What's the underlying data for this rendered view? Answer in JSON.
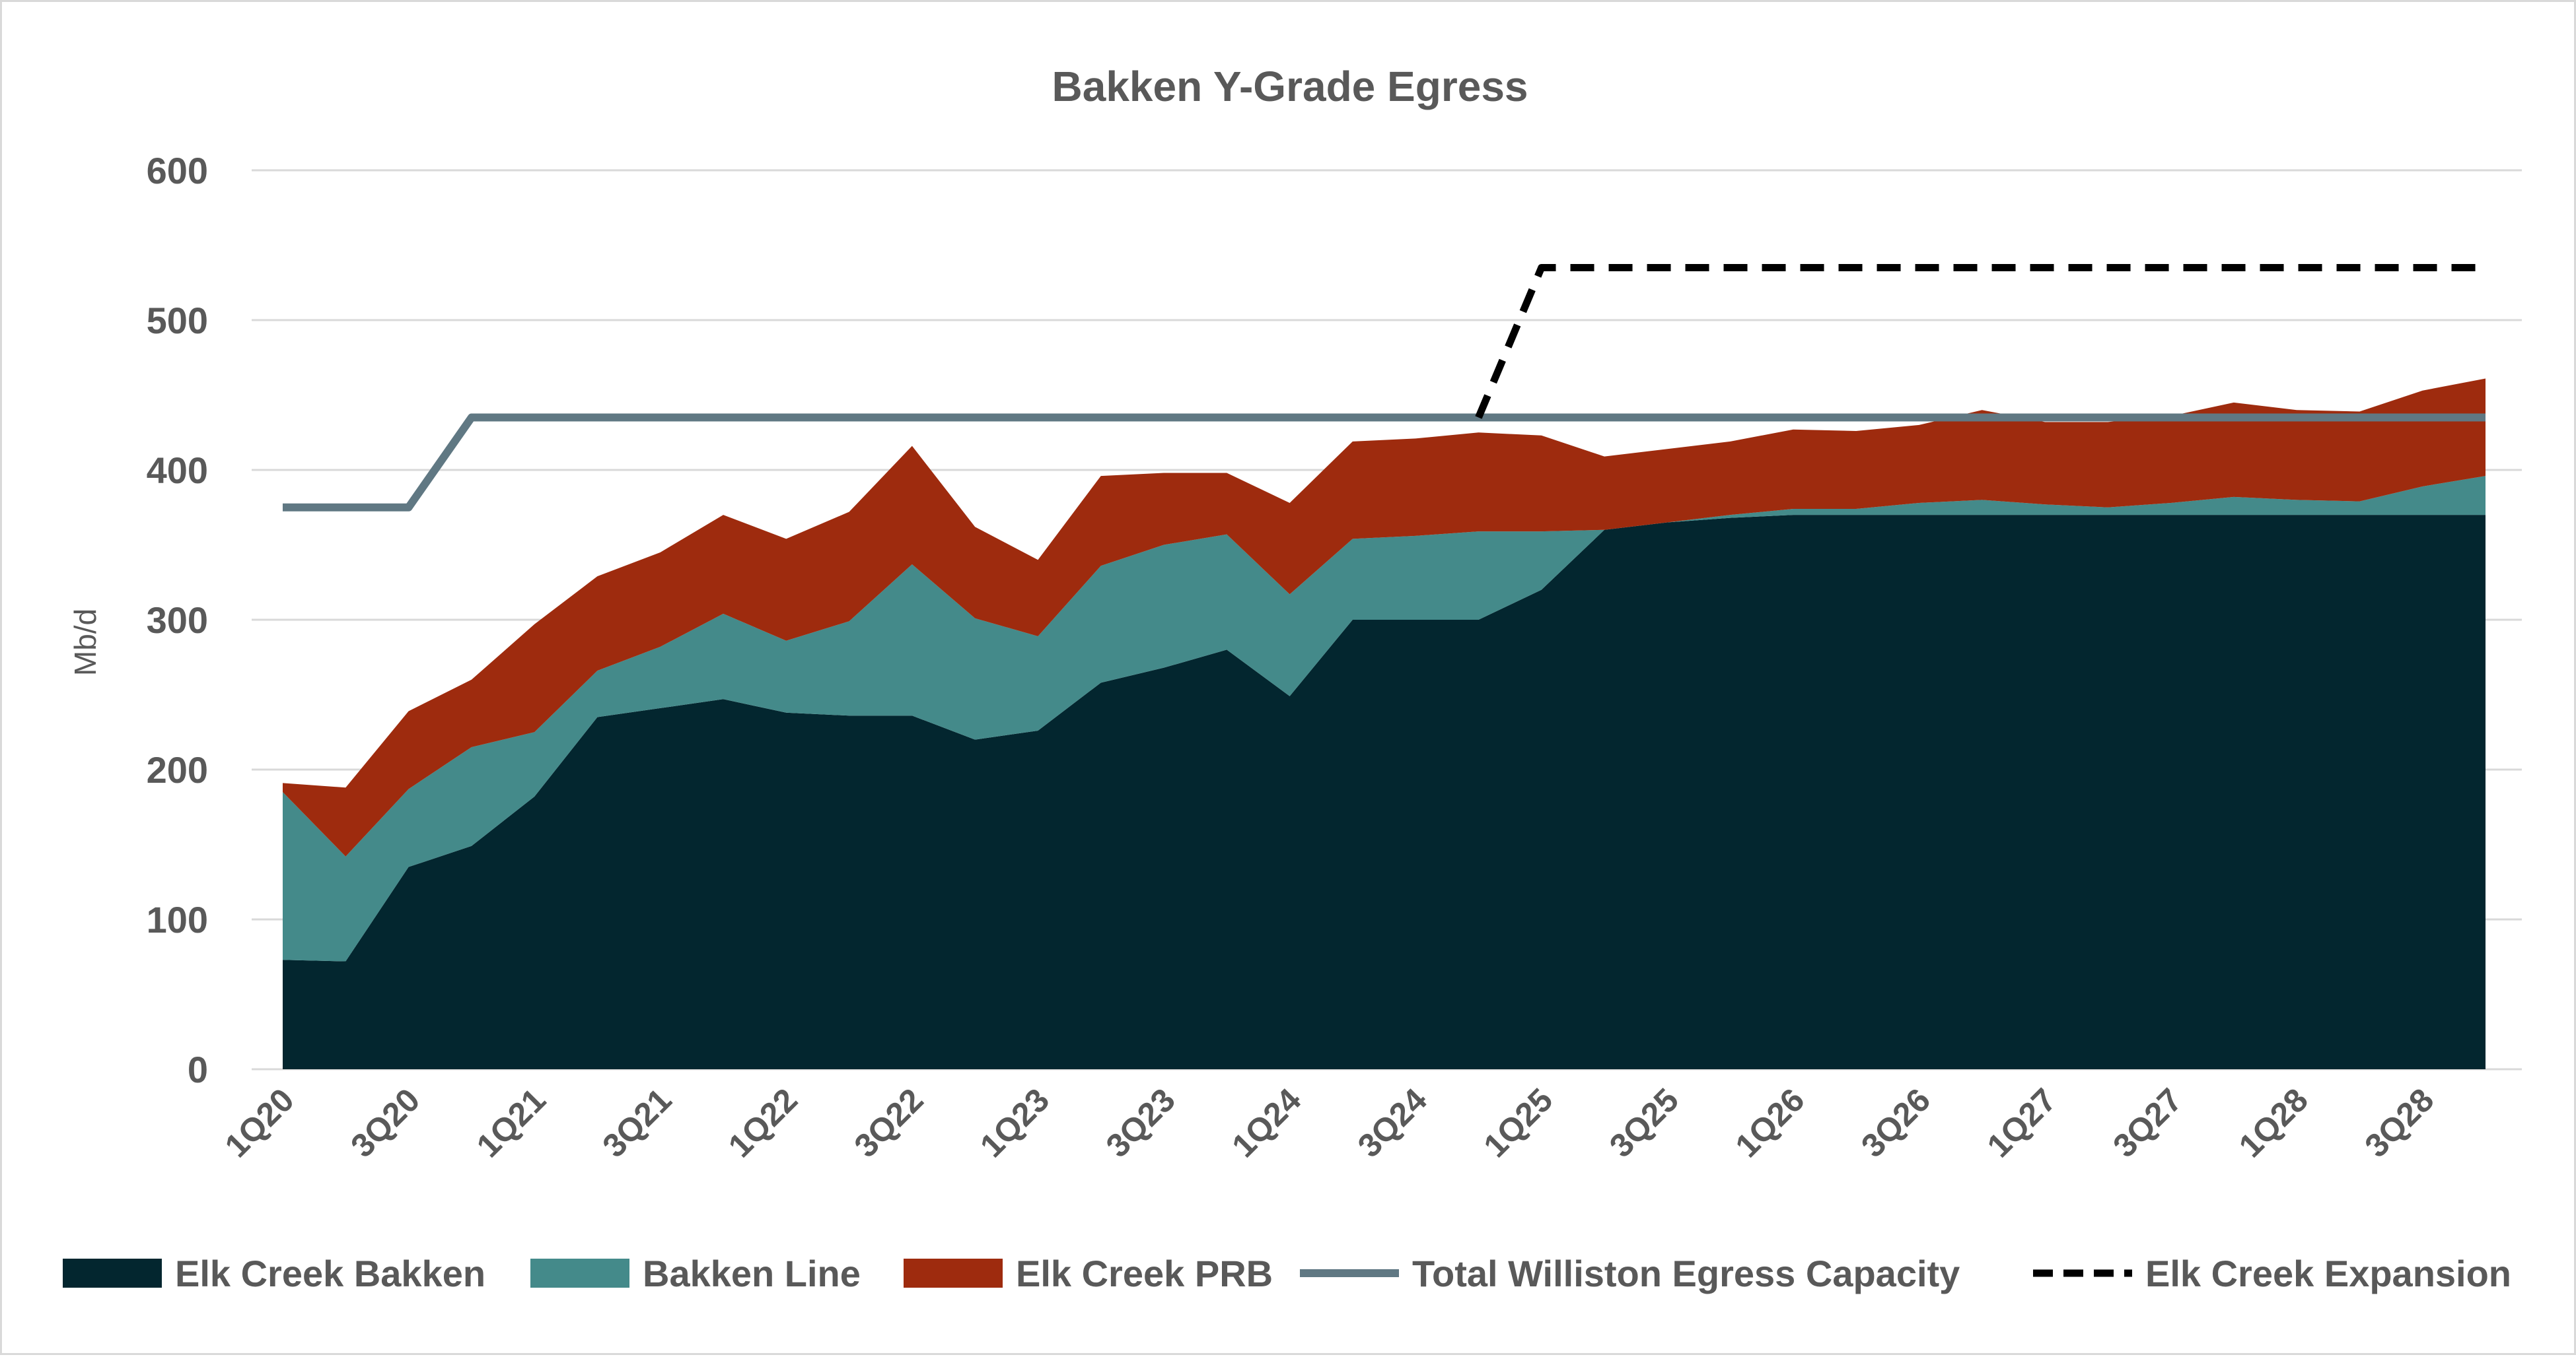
{
  "chart_data": {
    "type": "area",
    "title": "Bakken Y-Grade Egress",
    "xlabel": "",
    "ylabel": "Mb/d",
    "ylim": [
      0,
      600
    ],
    "yticks": [
      0,
      100,
      200,
      300,
      400,
      500,
      600
    ],
    "grid": true,
    "legend_position": "bottom",
    "categories": [
      "1Q20",
      "2Q20",
      "3Q20",
      "4Q20",
      "1Q21",
      "2Q21",
      "3Q21",
      "4Q21",
      "1Q22",
      "2Q22",
      "3Q22",
      "4Q22",
      "1Q23",
      "2Q23",
      "3Q23",
      "4Q23",
      "1Q24",
      "2Q24",
      "3Q24",
      "4Q24",
      "1Q25",
      "2Q25",
      "3Q25",
      "4Q25",
      "1Q26",
      "2Q26",
      "3Q26",
      "4Q26",
      "1Q27",
      "2Q27",
      "3Q27",
      "4Q27",
      "1Q28",
      "2Q28",
      "3Q28",
      "4Q28"
    ],
    "tick_labels": [
      "1Q20",
      "3Q20",
      "1Q21",
      "3Q21",
      "1Q22",
      "3Q22",
      "1Q23",
      "3Q23",
      "1Q24",
      "3Q24",
      "1Q25",
      "3Q25",
      "1Q26",
      "3Q26",
      "1Q27",
      "3Q27",
      "1Q28",
      "3Q28"
    ],
    "stacked_areas": [
      {
        "name": "Elk Creek Bakken",
        "color": "#03262f",
        "values": [
          73,
          72,
          135,
          149,
          182,
          235,
          241,
          247,
          238,
          236,
          236,
          220,
          226,
          258,
          268,
          280,
          249,
          300,
          300,
          300,
          320,
          360,
          365,
          368,
          370,
          370,
          370,
          370,
          370,
          370,
          370,
          370,
          370,
          370,
          370,
          370
        ]
      },
      {
        "name": "Bakken Line",
        "color": "#448a8a",
        "values": [
          112,
          70,
          52,
          66,
          43,
          31,
          41,
          57,
          48,
          63,
          101,
          81,
          63,
          78,
          82,
          77,
          68,
          54,
          56,
          59,
          39,
          0,
          0,
          2,
          4,
          4,
          8,
          10,
          7,
          5,
          8,
          12,
          10,
          9,
          19,
          26
        ]
      },
      {
        "name": "Elk Creek PRB",
        "color": "#9e2b0e",
        "values": [
          6,
          46,
          52,
          45,
          72,
          63,
          63,
          66,
          68,
          73,
          79,
          61,
          51,
          60,
          48,
          41,
          61,
          65,
          65,
          66,
          64,
          49,
          49,
          49,
          53,
          52,
          52,
          60,
          55,
          57,
          58,
          63,
          60,
          60,
          64,
          65
        ]
      }
    ],
    "lines": [
      {
        "name": "Total Williston Egress Capacity",
        "color": "#607883",
        "style": "solid",
        "points": [
          [
            0,
            375
          ],
          [
            2,
            375
          ],
          [
            3,
            435
          ],
          [
            35,
            435
          ]
        ]
      },
      {
        "name": "Elk Creek Expansion",
        "color": "#000000",
        "style": "dashed",
        "points": [
          [
            19,
            435
          ],
          [
            20,
            535
          ],
          [
            35,
            535
          ]
        ]
      }
    ]
  }
}
